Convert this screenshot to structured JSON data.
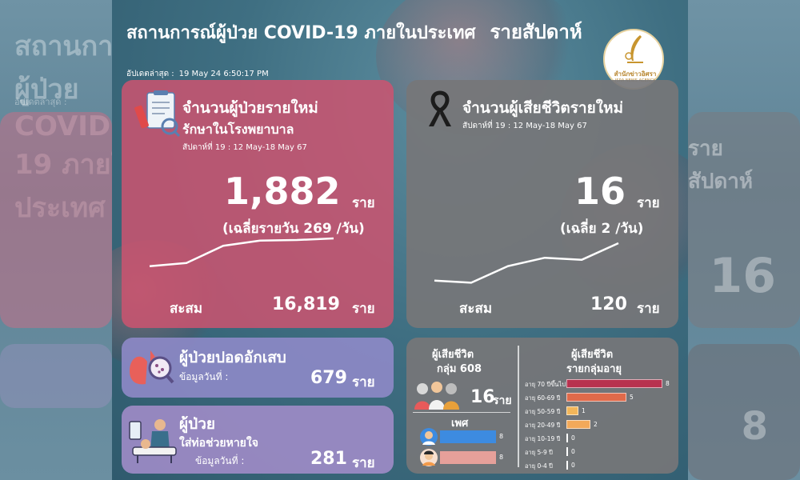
{
  "header": {
    "title": "สถานการณ์ผู้ป่วย COVID-19 ภายในประเทศ",
    "title_suffix": "รายสัปดาห์",
    "updated_label": "อัปเดตล่าสุด :",
    "updated_value": "19 May 24 6:50:17 PM"
  },
  "logo": {
    "name_th": "สำนักข่าวอิศรา",
    "name_en": "ISRA NEWS AGENCY"
  },
  "new_cases": {
    "title": "จำนวนผู้ป่วยรายใหม่",
    "subtitle": "รักษาในโรงพยาบาล",
    "week": "สัปดาห์ที่ 19 : 12 May-18 May 67",
    "value": "1,882",
    "unit": "ราย",
    "average": "(เฉลี่ยรายวัน 269 /วัน)",
    "cumulative_label": "สะสม",
    "cumulative_value": "16,819",
    "cumulative_unit": "ราย",
    "trend": [
      0.08,
      0.18,
      0.72,
      0.88,
      0.9,
      0.95
    ]
  },
  "deaths": {
    "title": "จำนวนผู้เสียชีวิตรายใหม่",
    "week": "สัปดาห์ที่ 19 : 12 May-18 May 67",
    "value": "16",
    "unit": "ราย",
    "average": "(เฉลี่ย 2 /วัน)",
    "cumulative_label": "สะสม",
    "cumulative_value": "120",
    "cumulative_unit": "ราย",
    "trend": [
      0.1,
      0.05,
      0.45,
      0.65,
      0.6,
      1.0
    ]
  },
  "pneumonia": {
    "title": "ผู้ป่วยปอดอักเสบ",
    "date_label": "ข้อมูลวันที่ :",
    "value": "679",
    "unit": "ราย"
  },
  "ventilator": {
    "title": "ผู้ป่วย",
    "subtitle": "ใส่ท่อช่วยหายใจ",
    "date_label": "ข้อมูลวันที่ :",
    "value": "281",
    "unit": "ราย"
  },
  "death_info": {
    "group_title": "ผู้เสียชีวิต",
    "group_subtitle": "กลุ่ม 608",
    "group_value": "16",
    "group_unit": "ราย",
    "gender_title": "เพศ",
    "male": 8,
    "female": 8,
    "male_color": "#3d8be0",
    "female_color": "#e6a09a",
    "age_title": "ผู้เสียชีวิต",
    "age_subtitle": "รายกลุ่มอายุ",
    "age_groups": [
      {
        "label": "อายุ 70 ปีขึ้นไป",
        "value": 8,
        "color": "#b8324f"
      },
      {
        "label": "อายุ 60-69 ปี",
        "value": 5,
        "color": "#e06a4a"
      },
      {
        "label": "อายุ 50-59 ปี",
        "value": 1,
        "color": "#f2b65a"
      },
      {
        "label": "อายุ 20-49 ปี",
        "value": 2,
        "color": "#f2a95a"
      },
      {
        "label": "อายุ 10-19 ปี",
        "value": 0,
        "color": "#ffffff"
      },
      {
        "label": "อายุ 5-9 ปี",
        "value": 0,
        "color": "#ffffff"
      },
      {
        "label": "อายุ 0-4 ปี",
        "value": 0,
        "color": "#ffffff"
      }
    ]
  }
}
